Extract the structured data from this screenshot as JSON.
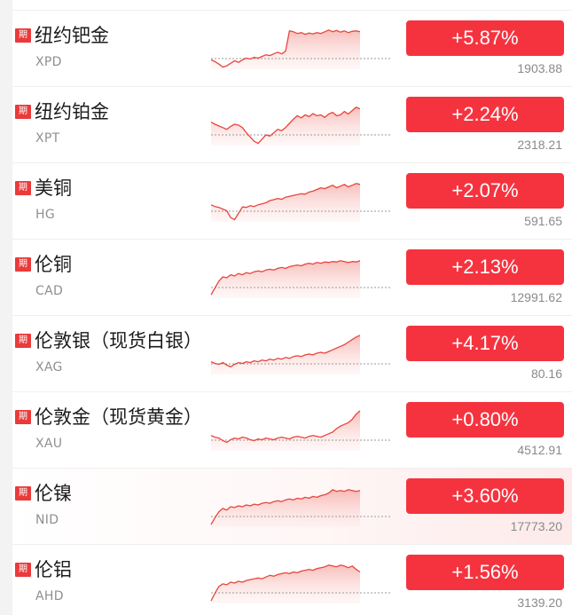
{
  "badge_label": "期",
  "colors": {
    "up": "#f5333f",
    "badge": "#ea3a3a",
    "line": "#e8453c"
  },
  "rows": [
    {
      "name": "纽约钯金",
      "code": "XPD",
      "change": "+5.87%",
      "price": "1903.88",
      "trend": [
        0.22,
        0.18,
        0.12,
        0.05,
        0.08,
        0.14,
        0.2,
        0.16,
        0.22,
        0.26,
        0.24,
        0.28,
        0.26,
        0.3,
        0.34,
        0.32,
        0.36,
        0.4,
        0.36,
        0.42,
        0.9,
        0.88,
        0.84,
        0.86,
        0.82,
        0.85,
        0.83,
        0.86,
        0.84,
        0.88,
        0.92,
        0.88,
        0.91,
        0.87,
        0.9,
        0.86,
        0.89,
        0.9,
        0.88
      ]
    },
    {
      "name": "纽约铂金",
      "code": "XPT",
      "change": "+2.24%",
      "price": "2318.21",
      "trend": [
        0.55,
        0.5,
        0.46,
        0.42,
        0.38,
        0.45,
        0.5,
        0.48,
        0.42,
        0.3,
        0.2,
        0.1,
        0.05,
        0.15,
        0.25,
        0.22,
        0.3,
        0.38,
        0.35,
        0.42,
        0.52,
        0.62,
        0.7,
        0.65,
        0.72,
        0.68,
        0.75,
        0.7,
        0.72,
        0.66,
        0.74,
        0.78,
        0.7,
        0.72,
        0.8,
        0.74,
        0.82,
        0.9,
        0.86
      ]
    },
    {
      "name": "美铜",
      "code": "HG",
      "change": "+2.07%",
      "price": "591.65",
      "trend": [
        0.4,
        0.36,
        0.34,
        0.3,
        0.26,
        0.1,
        0.05,
        0.2,
        0.35,
        0.34,
        0.38,
        0.36,
        0.4,
        0.42,
        0.45,
        0.5,
        0.52,
        0.55,
        0.53,
        0.58,
        0.6,
        0.62,
        0.64,
        0.66,
        0.65,
        0.7,
        0.72,
        0.76,
        0.8,
        0.78,
        0.82,
        0.86,
        0.8,
        0.84,
        0.88,
        0.82,
        0.86,
        0.9,
        0.88
      ]
    },
    {
      "name": "伦铜",
      "code": "CAD",
      "change": "+2.13%",
      "price": "12991.62",
      "trend": [
        0.08,
        0.24,
        0.4,
        0.5,
        0.48,
        0.55,
        0.52,
        0.58,
        0.55,
        0.6,
        0.58,
        0.62,
        0.64,
        0.62,
        0.66,
        0.68,
        0.66,
        0.7,
        0.72,
        0.7,
        0.74,
        0.76,
        0.78,
        0.76,
        0.8,
        0.82,
        0.8,
        0.84,
        0.82,
        0.85,
        0.84,
        0.86,
        0.85,
        0.88,
        0.86,
        0.84,
        0.86,
        0.85,
        0.88
      ]
    },
    {
      "name": "伦敦银（现货白银）",
      "code": "XAG",
      "change": "+4.17%",
      "price": "80.16",
      "trend": [
        0.3,
        0.26,
        0.24,
        0.28,
        0.22,
        0.18,
        0.24,
        0.28,
        0.26,
        0.3,
        0.28,
        0.32,
        0.3,
        0.34,
        0.32,
        0.36,
        0.34,
        0.38,
        0.36,
        0.4,
        0.38,
        0.42,
        0.44,
        0.42,
        0.46,
        0.48,
        0.46,
        0.5,
        0.52,
        0.5,
        0.54,
        0.58,
        0.62,
        0.66,
        0.7,
        0.76,
        0.82,
        0.88,
        0.92
      ]
    },
    {
      "name": "伦敦金（现货黄金）",
      "code": "XAU",
      "change": "+0.80%",
      "price": "4512.91",
      "trend": [
        0.36,
        0.32,
        0.3,
        0.24,
        0.2,
        0.26,
        0.3,
        0.28,
        0.32,
        0.3,
        0.26,
        0.24,
        0.28,
        0.26,
        0.3,
        0.28,
        0.26,
        0.3,
        0.32,
        0.3,
        0.28,
        0.32,
        0.34,
        0.32,
        0.3,
        0.34,
        0.36,
        0.34,
        0.32,
        0.36,
        0.4,
        0.44,
        0.52,
        0.58,
        0.62,
        0.66,
        0.74,
        0.86,
        0.94
      ]
    },
    {
      "name": "伦镍",
      "code": "NID",
      "change": "+3.60%",
      "price": "17773.20",
      "trend": [
        0.06,
        0.22,
        0.36,
        0.44,
        0.4,
        0.48,
        0.46,
        0.5,
        0.48,
        0.52,
        0.5,
        0.54,
        0.52,
        0.56,
        0.58,
        0.56,
        0.6,
        0.62,
        0.6,
        0.64,
        0.66,
        0.64,
        0.68,
        0.66,
        0.7,
        0.68,
        0.72,
        0.7,
        0.74,
        0.76,
        0.8,
        0.88,
        0.84,
        0.86,
        0.84,
        0.88,
        0.86,
        0.84,
        0.86
      ]
    },
    {
      "name": "伦铝",
      "code": "AHD",
      "change": "+1.56%",
      "price": "3139.20",
      "trend": [
        0.06,
        0.24,
        0.4,
        0.46,
        0.44,
        0.5,
        0.48,
        0.52,
        0.5,
        0.54,
        0.56,
        0.58,
        0.6,
        0.58,
        0.62,
        0.66,
        0.64,
        0.68,
        0.7,
        0.72,
        0.7,
        0.74,
        0.72,
        0.76,
        0.78,
        0.8,
        0.78,
        0.82,
        0.84,
        0.86,
        0.9,
        0.88,
        0.86,
        0.9,
        0.88,
        0.84,
        0.88,
        0.8,
        0.74
      ]
    }
  ]
}
